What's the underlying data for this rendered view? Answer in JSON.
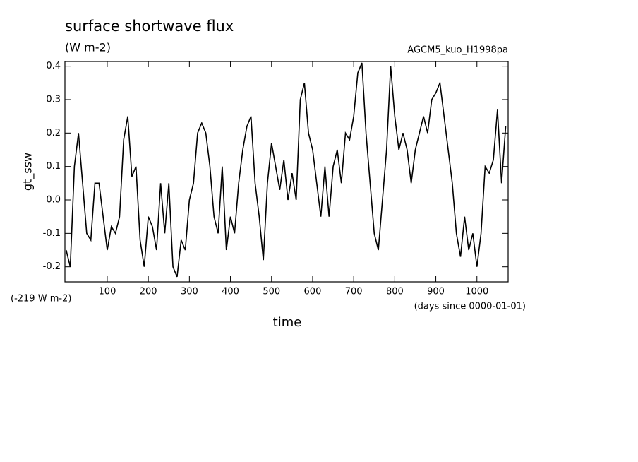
{
  "chart_data": {
    "type": "line",
    "title": "surface shortwave flux",
    "subtitle": "(W m-2)",
    "annotation_right": "AGCM5_kuo_H1998pa",
    "annotation_offset": "(-219 W m-2)",
    "x_units": "(days since 0000-01-01)",
    "x_label": "time",
    "y_label": "gt_ssw",
    "xlim": [
      -3,
      1076
    ],
    "ylim": [
      -0.245,
      0.414
    ],
    "xticks": [
      100,
      200,
      300,
      400,
      500,
      600,
      700,
      800,
      900,
      1000
    ],
    "yticks": [
      -0.2,
      -0.1,
      {
        "value": 0,
        "label": "0.0"
      },
      0.1,
      0.2,
      0.3,
      0.4
    ],
    "x": [
      0,
      10,
      20,
      30,
      40,
      50,
      60,
      70,
      80,
      90,
      100,
      110,
      120,
      130,
      140,
      150,
      160,
      170,
      180,
      190,
      200,
      210,
      220,
      230,
      240,
      250,
      260,
      270,
      280,
      290,
      300,
      310,
      320,
      330,
      340,
      350,
      360,
      370,
      380,
      390,
      400,
      410,
      420,
      430,
      440,
      450,
      460,
      470,
      480,
      490,
      500,
      510,
      520,
      530,
      540,
      550,
      560,
      570,
      580,
      590,
      600,
      610,
      620,
      630,
      640,
      650,
      660,
      670,
      680,
      690,
      700,
      710,
      720,
      730,
      740,
      750,
      760,
      770,
      780,
      790,
      800,
      810,
      820,
      830,
      840,
      850,
      860,
      870,
      880,
      890,
      900,
      910,
      920,
      930,
      940,
      950,
      960,
      970,
      980,
      990,
      1000,
      1010,
      1020,
      1030,
      1040,
      1050,
      1060,
      1070
    ],
    "series": [
      {
        "name": "gt_ssw",
        "color": "#000000",
        "values": [
          -0.15,
          -0.2,
          0.1,
          0.2,
          0.05,
          -0.1,
          -0.12,
          0.05,
          0.05,
          -0.05,
          -0.15,
          -0.08,
          -0.1,
          -0.05,
          0.18,
          0.25,
          0.07,
          0.1,
          -0.12,
          -0.2,
          -0.05,
          -0.08,
          -0.15,
          0.05,
          -0.1,
          0.05,
          -0.2,
          -0.23,
          -0.12,
          -0.15,
          0.0,
          0.05,
          0.2,
          0.23,
          0.2,
          0.1,
          -0.05,
          -0.1,
          0.1,
          -0.15,
          -0.05,
          -0.1,
          0.05,
          0.15,
          0.22,
          0.25,
          0.05,
          -0.05,
          -0.18,
          0.05,
          0.17,
          0.1,
          0.03,
          0.12,
          0.0,
          0.08,
          0.0,
          0.3,
          0.35,
          0.2,
          0.15,
          0.05,
          -0.05,
          0.1,
          -0.05,
          0.1,
          0.15,
          0.05,
          0.2,
          0.18,
          0.25,
          0.38,
          0.41,
          0.2,
          0.05,
          -0.1,
          -0.15,
          0.0,
          0.15,
          0.4,
          0.25,
          0.15,
          0.2,
          0.15,
          0.05,
          0.15,
          0.2,
          0.25,
          0.2,
          0.3,
          0.32,
          0.35,
          0.25,
          0.15,
          0.05,
          -0.1,
          -0.17,
          -0.05,
          -0.15,
          -0.1,
          -0.2,
          -0.1,
          0.1,
          0.08,
          0.12,
          0.27,
          0.05,
          0.22
        ]
      }
    ]
  }
}
